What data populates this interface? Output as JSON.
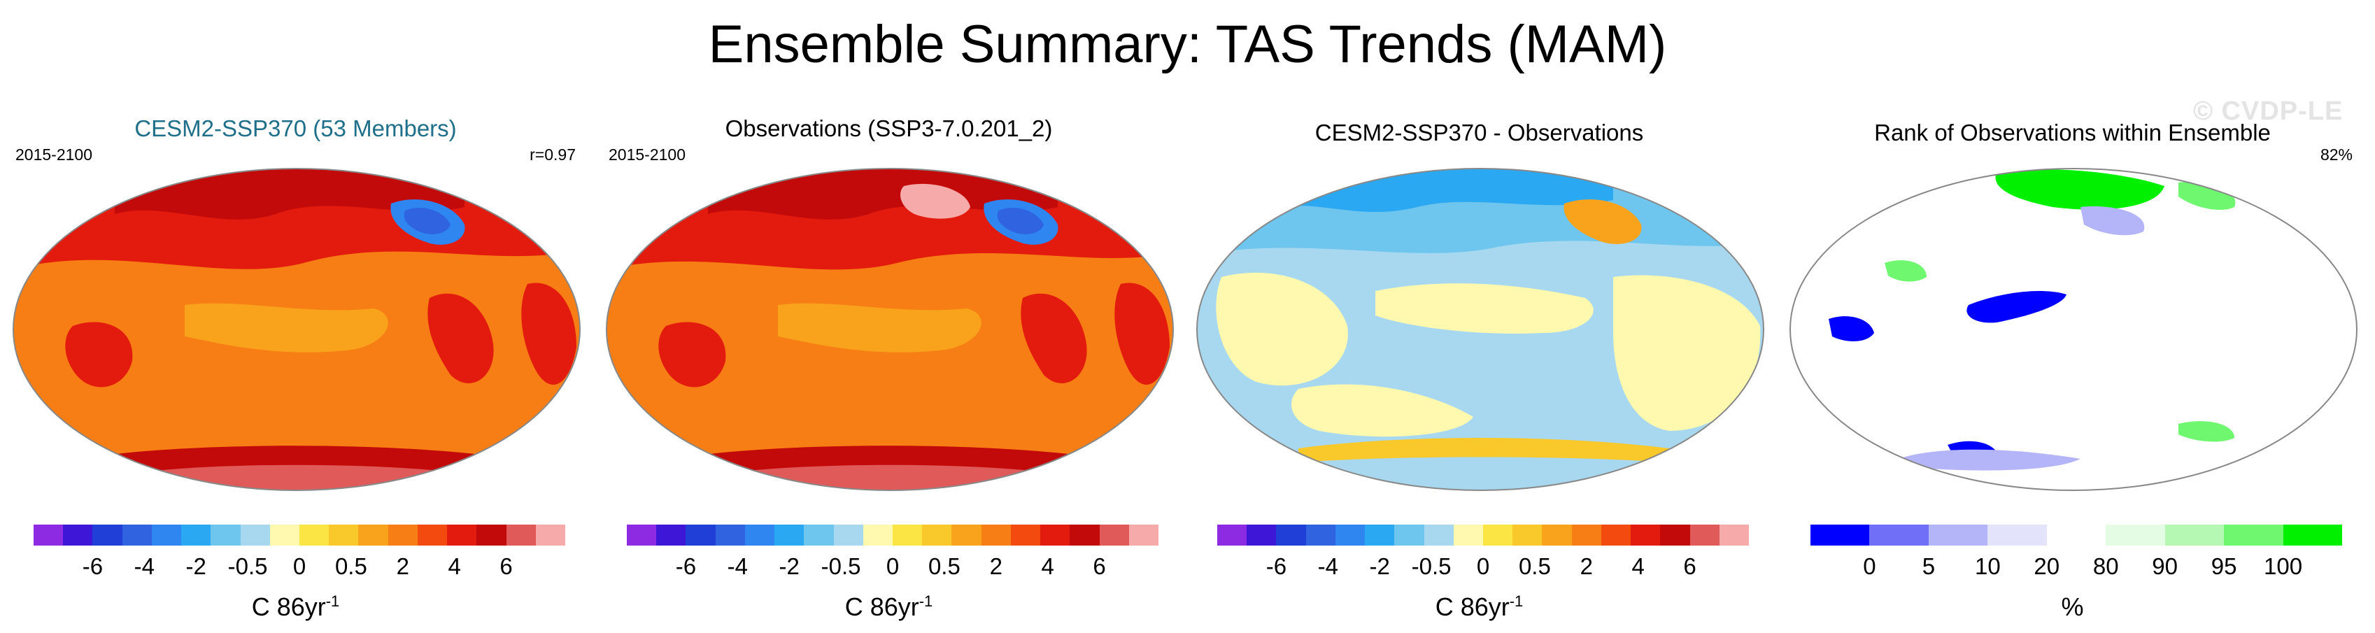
{
  "page": {
    "title": "Ensemble Summary: TAS Trends (MAM)",
    "watermark": "© CVDP-LE"
  },
  "chart_data": [
    {
      "type": "heatmap",
      "title": "CESM2-SSP370 (53 Members)",
      "left_label": "2015-2100",
      "right_label": "r=0.97",
      "projection": "global map, pacific-centered",
      "dominant_values": "warming 2 to 6 nearly everywhere, strongest over land and poles; cooling (-4 to -6) south of Greenland",
      "colorbar": {
        "colors": [
          "#8c2be2",
          "#3d16d8",
          "#1f3fd6",
          "#2f63e0",
          "#2f86f0",
          "#2aa8f2",
          "#6ec5ee",
          "#a8d8ef",
          "#fff9b0",
          "#fbe545",
          "#f9c82a",
          "#f9a31d",
          "#f77e14",
          "#f34a10",
          "#e31a0e",
          "#c30a0a",
          "#e05a5a",
          "#f7aaaa"
        ],
        "ticks": [
          "-6",
          "-4",
          "-2",
          "-0.5",
          "0",
          "0.5",
          "2",
          "4",
          "6"
        ],
        "units": "C 86yr",
        "units_sup": "-1"
      }
    },
    {
      "type": "heatmap",
      "title": "Observations (SSP3-7.0.201_2)",
      "left_label": "2015-2100",
      "right_label": "",
      "projection": "global map, pacific-centered",
      "dominant_values": "warming 2 to 6 nearly everywhere; cooling south of Greenland",
      "colorbar": {
        "colors": [
          "#8c2be2",
          "#3d16d8",
          "#1f3fd6",
          "#2f63e0",
          "#2f86f0",
          "#2aa8f2",
          "#6ec5ee",
          "#a8d8ef",
          "#fff9b0",
          "#fbe545",
          "#f9c82a",
          "#f9a31d",
          "#f77e14",
          "#f34a10",
          "#e31a0e",
          "#c30a0a",
          "#e05a5a",
          "#f7aaaa"
        ],
        "ticks": [
          "-6",
          "-4",
          "-2",
          "-0.5",
          "0",
          "0.5",
          "2",
          "4",
          "6"
        ],
        "units": "C 86yr",
        "units_sup": "-1"
      }
    },
    {
      "type": "heatmap",
      "title": "CESM2-SSP370 - Observations",
      "left_label": "",
      "right_label": "",
      "projection": "global map, pacific-centered",
      "dominant_values": "differences mostly between -2 and 0.5; positive over North Atlantic",
      "colorbar": {
        "colors": [
          "#8c2be2",
          "#3d16d8",
          "#1f3fd6",
          "#2f63e0",
          "#2f86f0",
          "#2aa8f2",
          "#6ec5ee",
          "#a8d8ef",
          "#fff9b0",
          "#fbe545",
          "#f9c82a",
          "#f9a31d",
          "#f77e14",
          "#f34a10",
          "#e31a0e",
          "#c30a0a",
          "#e05a5a",
          "#f7aaaa"
        ],
        "ticks": [
          "-6",
          "-4",
          "-2",
          "-0.5",
          "0",
          "0.5",
          "2",
          "4",
          "6"
        ],
        "units": "C 86yr",
        "units_sup": "-1"
      }
    },
    {
      "type": "heatmap",
      "title": "Rank of Observations within Ensemble",
      "left_label": "",
      "right_label": "82%",
      "projection": "global map, pacific-centered",
      "dominant_values": "mostly 20-80 (white); low ranks in tropical Pacific and Southern Ocean; high ranks in Arctic",
      "colorbar": {
        "colors": [
          "#0000ff",
          "#6f6ff8",
          "#b4b4f8",
          "#e3e3fc",
          "#ffffff",
          "#e3fce3",
          "#b4f8b4",
          "#6ff86f",
          "#00f000"
        ],
        "ticks": [
          "0",
          "5",
          "10",
          "20",
          "80",
          "90",
          "95",
          "100"
        ],
        "units": "%",
        "units_sup": ""
      }
    }
  ]
}
